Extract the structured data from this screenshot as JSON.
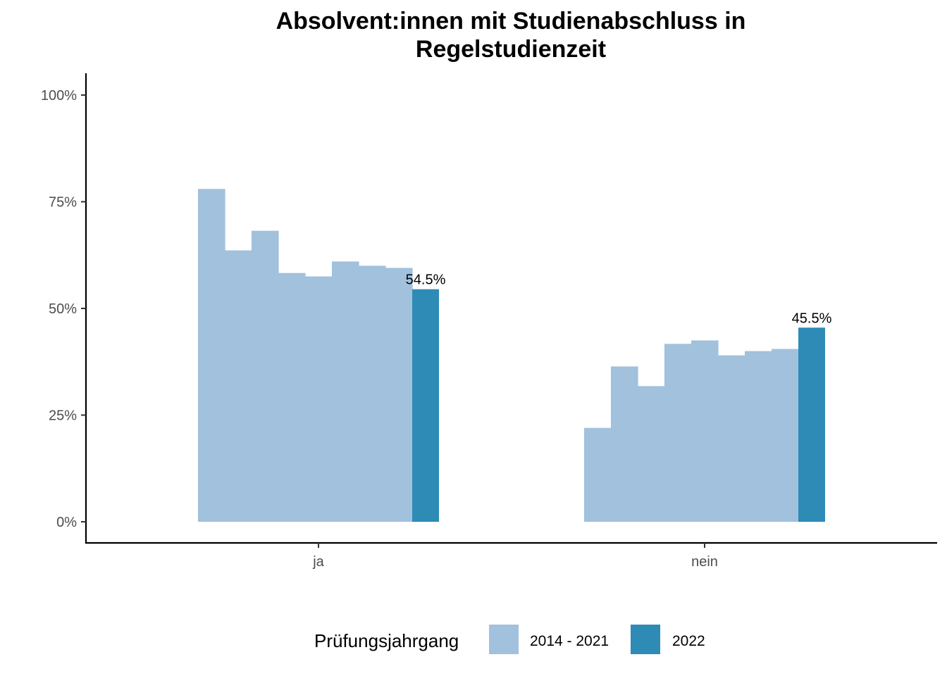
{
  "chart_data": {
    "type": "bar",
    "title_lines": [
      "Absolvent:innen mit Studienabschluss in",
      "Regelstudienzeit"
    ],
    "xlabel": "",
    "ylabel": "",
    "categories": [
      "ja",
      "nein"
    ],
    "ylim": [
      0,
      1
    ],
    "y_ticks": [
      0,
      0.25,
      0.5,
      0.75,
      1.0
    ],
    "y_tick_labels": [
      "0%",
      "25%",
      "50%",
      "75%",
      "100%"
    ],
    "years": [
      "2014",
      "2015",
      "2016",
      "2017",
      "2018",
      "2019",
      "2020",
      "2021",
      "2022"
    ],
    "values": {
      "ja": [
        0.78,
        0.636,
        0.682,
        0.583,
        0.575,
        0.61,
        0.6,
        0.595,
        0.545
      ],
      "nein": [
        0.22,
        0.364,
        0.318,
        0.417,
        0.425,
        0.39,
        0.4,
        0.405,
        0.455
      ]
    },
    "series": [
      {
        "name": "2014 - 2021",
        "color": "#a1c1dd"
      },
      {
        "name": "2022",
        "color": "#2e8bb6"
      }
    ],
    "data_labels": {
      "ja": "54.5%",
      "nein": "45.5%"
    },
    "legend": {
      "title": "Prüfungsjahrgang",
      "position": "bottom"
    },
    "grid": false
  }
}
